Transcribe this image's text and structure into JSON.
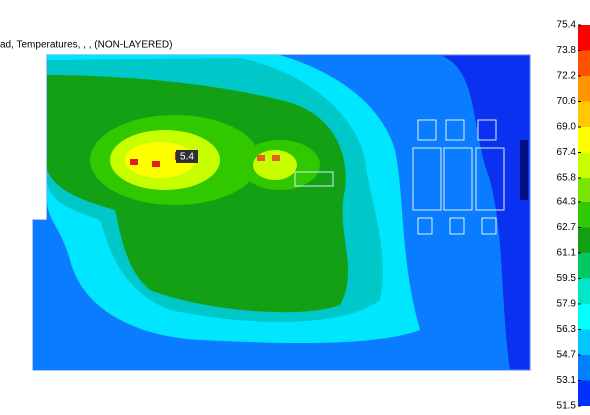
{
  "chart_data": {
    "type": "heatmap",
    "title": "ad, Temperatures, , , (NON-LAYERED)",
    "peak_label": "5.4",
    "ylim": [
      51.5,
      75.4
    ],
    "yticks": [
      75.4,
      73.8,
      72.2,
      70.6,
      {
        "value": 69,
        "label": "69.0"
      },
      67.4,
      65.8,
      64.3,
      62.7,
      61.1,
      59.5,
      57.9,
      56.3,
      54.7,
      53.1,
      51.5
    ],
    "colors": [
      "#ff0000",
      "#ff5000",
      "#ff9600",
      "#ffc800",
      "#ffff00",
      "#c8ff00",
      "#78e600",
      "#32c800",
      "#14a014",
      "#00c864",
      "#00e6c8",
      "#00ffff",
      "#00c8ff",
      "#0080ff",
      "#0030ff"
    ]
  }
}
